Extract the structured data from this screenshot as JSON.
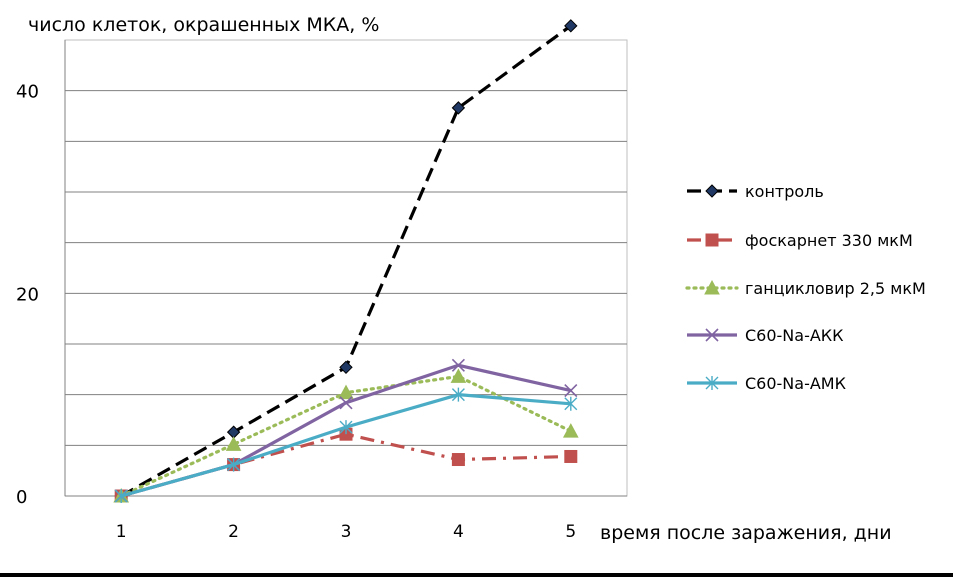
{
  "chart_data": {
    "type": "line",
    "title": "",
    "ylabel": "число клеток, окрашенных МКА, %",
    "xlabel": "время после заражения, дни",
    "categories": [
      "1",
      "2",
      "3",
      "4",
      "5"
    ],
    "ylim": [
      0,
      45
    ],
    "yticks": [
      0,
      20,
      40
    ],
    "grid": true,
    "legend_position": "right",
    "series": [
      {
        "name": "контроль",
        "values": [
          0,
          6.3,
          12.7,
          38.3,
          46.4
        ],
        "color": "#000000",
        "dash": "dashed",
        "marker": "diamond"
      },
      {
        "name": "фоскарнет 330 мкМ",
        "values": [
          0,
          3.1,
          6.1,
          3.6,
          3.9
        ],
        "color": "#c0504d",
        "dash": "dashdot",
        "marker": "square"
      },
      {
        "name": "ганцикловир 2,5 мкМ",
        "values": [
          0,
          5.1,
          10.2,
          11.8,
          6.4
        ],
        "color": "#9bbb59",
        "dash": "dotted",
        "marker": "triangle"
      },
      {
        "name": "С60-Na-АКК",
        "values": [
          0,
          3.1,
          9.2,
          12.9,
          10.4
        ],
        "color": "#8064a2",
        "dash": "solid",
        "marker": "x"
      },
      {
        "name": "С60-Na-АМК",
        "values": [
          0,
          3.1,
          6.8,
          10.0,
          9.1
        ],
        "color": "#4bacc6",
        "dash": "solid",
        "marker": "star"
      }
    ]
  }
}
